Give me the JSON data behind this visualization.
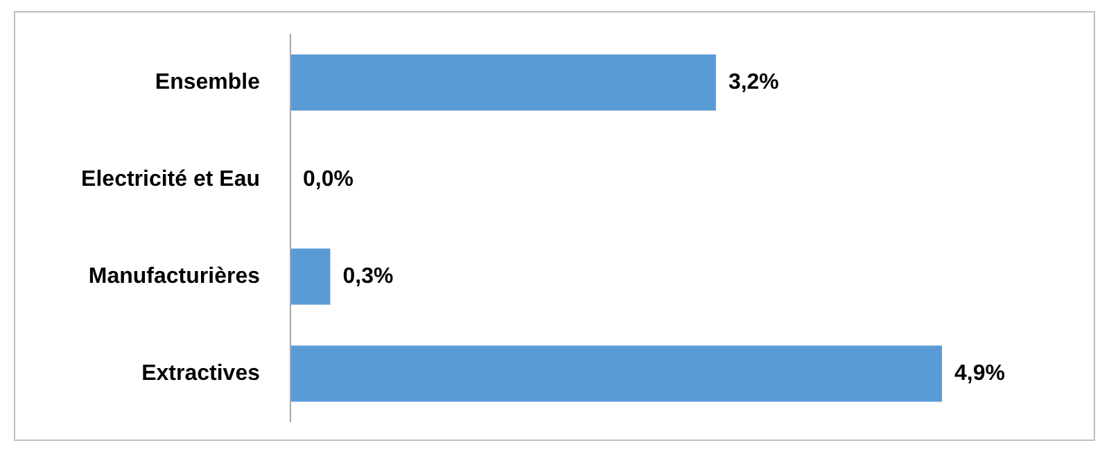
{
  "chart_data": {
    "type": "bar",
    "orientation": "horizontal",
    "categories": [
      "Ensemble",
      "Electricité et Eau",
      "Manufacturières",
      "Extractives"
    ],
    "values": [
      3.2,
      0.0,
      0.3,
      4.9
    ],
    "value_labels": [
      "3,2%",
      "0,0%",
      "0,3%",
      "4,9%"
    ],
    "color": "#5b9bd5",
    "grid": false
  }
}
